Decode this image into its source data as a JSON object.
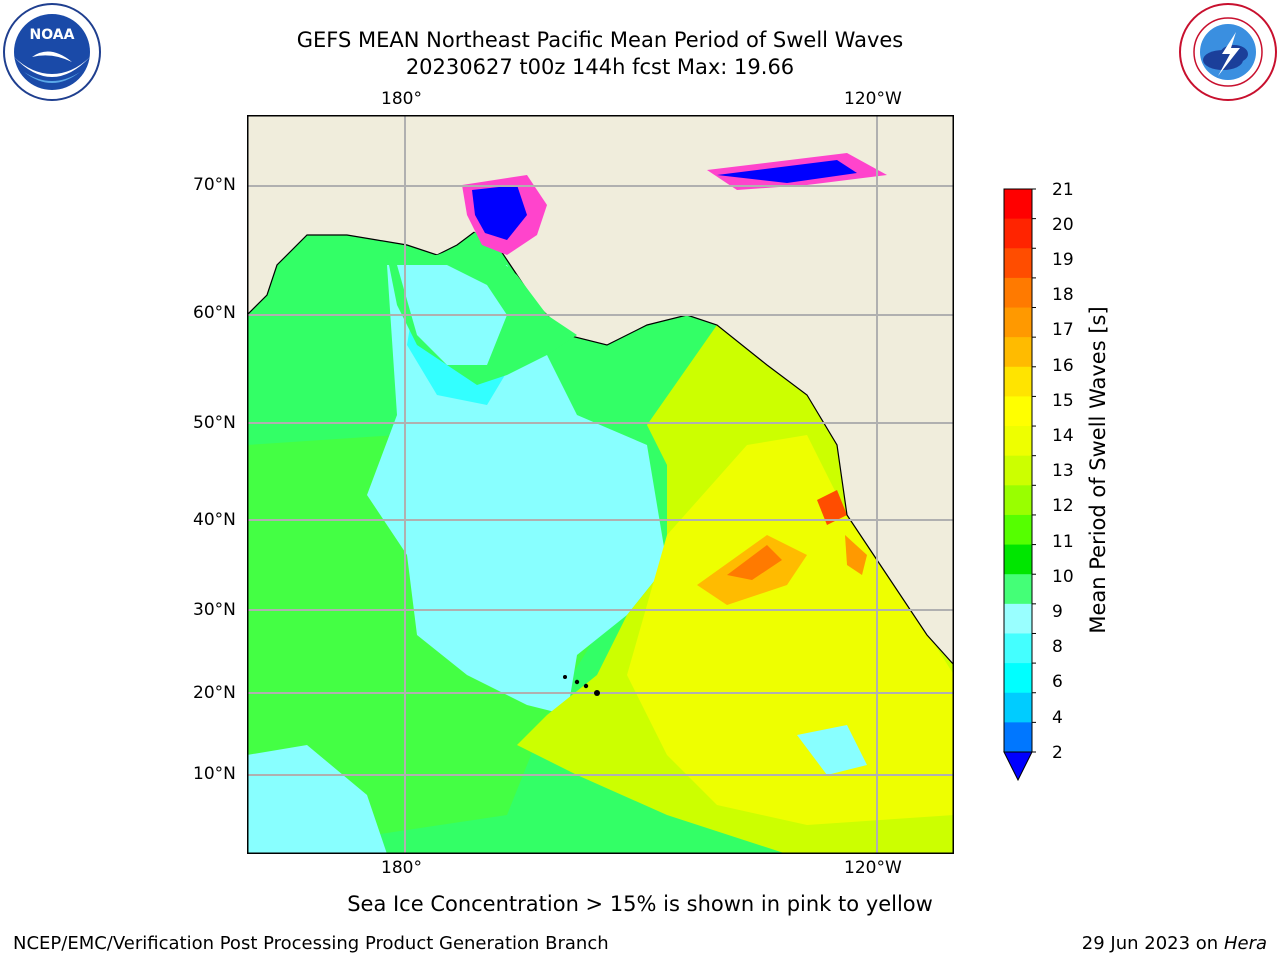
{
  "header": {
    "title_line1": "GEFS MEAN Northeast Pacific Mean Period of Swell Waves",
    "title_line2": "20230627 t00z 144h fcst   Max: 19.66"
  },
  "logos": {
    "left": {
      "icon": "noaa-logo",
      "text": "NOAA",
      "ring_text": "NATIONAL OCEANIC AND ATMOSPHERIC ADMINISTRATION · U.S. DEPARTMENT OF COMMERCE"
    },
    "right": {
      "icon": "nws-logo",
      "ring_text": "NATIONAL WEATHER SERVICE"
    }
  },
  "map": {
    "lon_labels_top": [
      "180°",
      "120°W"
    ],
    "lon_labels_bottom": [
      "180°",
      "120°W"
    ],
    "lat_labels": [
      "70°N",
      "60°N",
      "50°N",
      "40°N",
      "30°N",
      "20°N",
      "10°N"
    ],
    "ocean_color": "#33ff66",
    "land_color": "#f0eddc"
  },
  "colorbar": {
    "label": "Mean Period of Swell Waves [s]",
    "ticks": [
      "21",
      "20",
      "19",
      "18",
      "17",
      "16",
      "15",
      "14",
      "13",
      "12",
      "11",
      "10",
      "9",
      "8",
      "6",
      "4",
      "2"
    ],
    "colors": [
      "#ff0000",
      "#ff2400",
      "#ff4d00",
      "#ff7a00",
      "#ff9900",
      "#ffbb00",
      "#ffe400",
      "#ffff00",
      "#eeff00",
      "#ccff00",
      "#99ff00",
      "#55ff00",
      "#00e600",
      "#44ff77",
      "#99ffff",
      "#44ffff",
      "#00ffff",
      "#00ccff",
      "#0077ff",
      "#0000ff"
    ]
  },
  "footer": {
    "note": "Sea Ice Concentration > 15% is shown in pink to yellow",
    "branch": "NCEP/EMC/Verification Post Processing Product Generation Branch",
    "date": "29 Jun 2023 on",
    "machine": "Hera"
  }
}
